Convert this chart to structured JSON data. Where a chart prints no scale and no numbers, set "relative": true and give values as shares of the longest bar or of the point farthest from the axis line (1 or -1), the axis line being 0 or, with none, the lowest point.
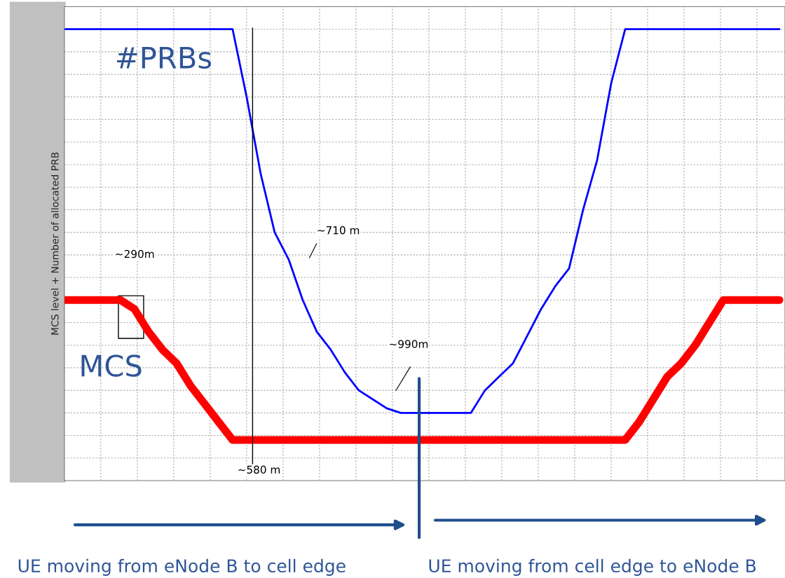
{
  "chart_data": {
    "type": "line",
    "relative": true,
    "ylabel": "MCS level + Number of allocated PRB",
    "categories": [
      null,
      null,
      null,
      null,
      null,
      null,
      null,
      null,
      null,
      null,
      null,
      null,
      null,
      null,
      null,
      null,
      null,
      null,
      null,
      null,
      null,
      null,
      null,
      null,
      null,
      null,
      null,
      null,
      null,
      null,
      null,
      null,
      null,
      null,
      null,
      null,
      null,
      null,
      null,
      null,
      null,
      null,
      null,
      null,
      null,
      null,
      null,
      null,
      null,
      null,
      null,
      null
    ],
    "series": [
      {
        "name": "#PRBs",
        "color": "#0000ff",
        "values": [
          1,
          1,
          1,
          1,
          1,
          1,
          1,
          1,
          1,
          1,
          1,
          1,
          1,
          0.85,
          0.68,
          0.55,
          0.49,
          0.4,
          0.33,
          0.29,
          0.24,
          0.2,
          0.18,
          0.16,
          0.15,
          0.15,
          0.15,
          0.15,
          0.15,
          0.15,
          0.2,
          0.23,
          0.26,
          0.32,
          0.38,
          0.43,
          0.47,
          0.6,
          0.71,
          0.88,
          1,
          1,
          1,
          1,
          1,
          1,
          1,
          1,
          1,
          1,
          1,
          1
        ]
      },
      {
        "name": "MCS",
        "color": "#ff0000",
        "values": [
          0.4,
          0.4,
          0.4,
          0.4,
          0.4,
          0.38,
          0.33,
          0.29,
          0.26,
          0.21,
          0.17,
          0.13,
          0.09,
          0.09,
          0.09,
          0.09,
          0.09,
          0.09,
          0.09,
          0.09,
          0.09,
          0.09,
          0.09,
          0.09,
          0.09,
          0.09,
          0.09,
          0.09,
          0.09,
          0.09,
          0.09,
          0.09,
          0.09,
          0.09,
          0.09,
          0.09,
          0.09,
          0.09,
          0.09,
          0.09,
          0.09,
          0.13,
          0.18,
          0.23,
          0.26,
          0.3,
          0.35,
          0.4,
          0.4,
          0.4,
          0.4,
          0.4
        ]
      }
    ],
    "annotations": [
      "~290m",
      "~710 m",
      "~990m",
      "~580 m",
      "UE moving from eNode B to cell edge",
      "UE moving from cell edge to eNode B"
    ],
    "grid": true,
    "tick_labels": false
  }
}
